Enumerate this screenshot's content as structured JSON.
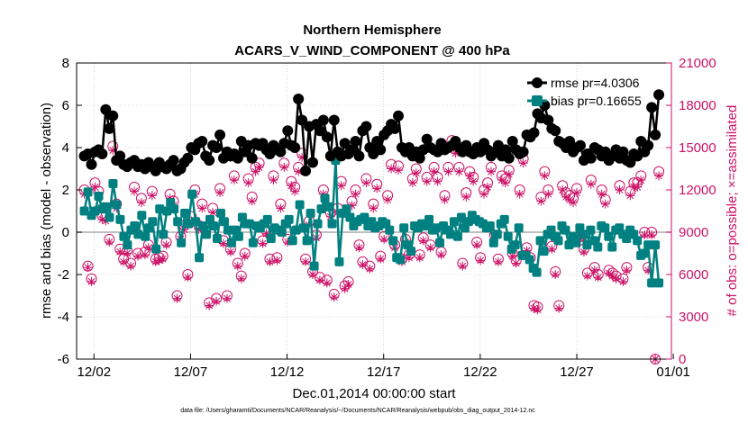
{
  "chart_data": {
    "type": "line",
    "title": [
      "Northern Hemisphere",
      "ACARS_V_WIND_COMPONENT @ 400 hPa"
    ],
    "xlabel": "Dec.01,2014 00:00:00 start",
    "ylabel": "rmse and bias (model - observation)",
    "ylabel_right": "# of obs: o=possible; ×=assimilated",
    "footnote": "data file: /Users/gharamti/Documents/NCAR/Reanalysis/~/Documents/NCAR/Reanalysis/webpub/obs_diag_output_2014-12.nc",
    "xlim": [
      0.6,
      31.4
    ],
    "ylim": [
      -6,
      8
    ],
    "ylim_right": [
      0,
      21000
    ],
    "x_ticks": [
      1.5,
      6.5,
      11.5,
      16.5,
      21.5,
      26.5,
      31.5
    ],
    "x_tick_labels": [
      "12/02",
      "12/07",
      "12/12",
      "12/17",
      "12/22",
      "12/27",
      "01/01"
    ],
    "y_ticks": [
      -6,
      -4,
      -2,
      0,
      2,
      4,
      6,
      8
    ],
    "y_tick_labels": [
      "-6",
      "-4",
      "-2",
      "0",
      "2",
      "4",
      "6",
      "8"
    ],
    "y_ticks_right": [
      0,
      3000,
      6000,
      9000,
      12000,
      15000,
      18000,
      21000
    ],
    "y_tick_labels_right": [
      "0",
      "3000",
      "6000",
      "9000",
      "12000",
      "15000",
      "18000",
      "21000"
    ],
    "zero_line": 0,
    "grid": true,
    "legend_position": "top-right",
    "colors": {
      "rmse": "#000000",
      "bias": "#008080",
      "obs": "#cc1166",
      "zero_line": "#aaaaaa",
      "grid": "#bbbbbb"
    },
    "series": [
      {
        "name": "rmse pr=4.0306",
        "axis": "left",
        "marker": "filled-circle",
        "values": [
          3.6,
          3.7,
          3.2,
          3.8,
          3.9,
          3.7,
          5.8,
          4.9,
          5.5,
          3.4,
          3.6,
          3.2,
          3.1,
          3.3,
          3.4,
          3.1,
          3.2,
          3.0,
          3.3,
          3.1,
          2.9,
          3.3,
          3.1,
          3.0,
          3.2,
          3.4,
          2.9,
          3.0,
          3.3,
          3.5,
          4.0,
          3.9,
          4.2,
          4.3,
          3.6,
          3.4,
          4.1,
          4.0,
          4.6,
          3.5,
          3.8,
          3.6,
          3.7,
          3.5,
          4.3,
          3.8,
          4.1,
          3.5,
          4.2,
          4.1,
          4.2,
          3.9,
          3.7,
          4.1,
          3.9,
          3.8,
          4.2,
          4.8,
          4.1,
          4.0,
          6.3,
          5.3,
          2.9,
          5.0,
          3.3,
          5.1,
          4.8,
          5.3,
          4.5,
          3.6,
          5.3,
          3.8,
          3.6,
          4.2,
          3.7,
          3.9,
          4.3,
          3.6,
          4.8,
          5.0,
          4.0,
          3.7,
          4.3,
          3.9,
          4.6,
          4.8,
          5.1,
          4.9,
          5.5,
          4.0,
          3.8,
          4.0,
          3.6,
          3.8,
          3.5,
          3.9,
          4.4,
          4.0,
          3.9,
          3.8,
          4.2,
          3.9,
          4.0,
          4.1,
          4.3,
          4.0,
          3.8,
          4.1,
          3.8,
          3.7,
          4.0,
          3.8,
          4.2,
          3.9,
          3.6,
          3.8,
          4.1,
          3.6,
          3.9,
          3.5,
          4.3,
          3.9,
          3.7,
          3.8,
          4.6,
          4.5,
          4.7,
          5.6,
          5.4,
          6.0,
          5.3,
          4.9,
          4.8,
          4.3,
          4.2,
          4.0,
          4.3,
          3.8,
          4.0,
          4.1,
          3.4,
          3.7,
          3.5,
          4.0,
          3.9,
          3.6,
          3.8,
          3.4,
          3.6,
          3.9,
          3.5,
          3.8,
          3.4,
          3.3,
          3.7,
          3.6,
          4.3,
          3.8,
          4.1,
          5.9,
          4.6,
          6.5
        ]
      },
      {
        "name": "bias pr=0.16655",
        "axis": "left",
        "marker": "filled-square",
        "values": [
          1.0,
          1.9,
          0.8,
          1.0,
          1.7,
          1.1,
          1.2,
          0.7,
          2.3,
          1.3,
          0.6,
          -0.2,
          -0.6,
          0.1,
          0.3,
          -0.1,
          0.8,
          -0.2,
          0.2,
          0.5,
          -0.8,
          1.1,
          -0.1,
          1.0,
          1.4,
          1.1,
          0.5,
          -0.5,
          0.9,
          0.4,
          1.8,
          0.5,
          -1.2,
          0.3,
          -0.1,
          0.6,
          0.3,
          -0.3,
          0.9,
          0.5,
          0.1,
          -0.5,
          0.1,
          -0.2,
          0.7,
          0.4,
          0.4,
          -0.5,
          0.3,
          0.2,
          0.4,
          0.6,
          -0.3,
          0.2,
          0.1,
          0.0,
          0.4,
          0.6,
          -0.4,
          0.1,
          1.3,
          0.2,
          -0.4,
          0.9,
          -1.6,
          0.4,
          1.1,
          1.6,
          1.2,
          0.4,
          3.4,
          -1.4,
          0.9,
          1.1,
          0.7,
          0.3,
          0.5,
          0.6,
          0.7,
          0.3,
          0.5,
          0.2,
          0.3,
          0.5,
          0.4,
          0.1,
          -0.4,
          -1.2,
          -1.3,
          0.2,
          -0.6,
          -0.9,
          0.3,
          0.2,
          0.4,
          0.3,
          0.6,
          0.1,
          0.2,
          -0.5,
          0.3,
          0.1,
          -0.1,
          0.5,
          -0.2,
          0.7,
          0.2,
          0.5,
          0.8,
          0.6,
          0.5,
          0.4,
          0.2,
          0.3,
          -0.5,
          -0.1,
          0.4,
          0.6,
          -0.2,
          -0.8,
          -0.6,
          0.2,
          -1.1,
          -1.1,
          -1.3,
          -1.7,
          -1.9,
          -0.4,
          -0.9,
          -0.1,
          0.1,
          -0.2,
          -0.4,
          0.3,
          0.1,
          -0.6,
          -0.2,
          -0.5,
          0.2,
          -0.1,
          -0.6,
          0.1,
          -0.4,
          -0.7,
          0.3,
          0.2,
          -0.2,
          -0.7,
          0.1,
          0.2,
          -0.1,
          -0.3,
          0.1,
          -0.1,
          -0.4,
          -1.1,
          -1.0,
          -0.6,
          -2.4,
          -0.6,
          -2.4
        ]
      },
      {
        "name": "obs possible",
        "axis": "right",
        "marker": "open-circle",
        "values": [
          12000,
          6600,
          5700,
          12500,
          11900,
          10200,
          10100,
          8500,
          15100,
          11000,
          7800,
          7100,
          7700,
          6800,
          12200,
          7500,
          11400,
          7600,
          8100,
          11900,
          7100,
          7200,
          7300,
          8300,
          11700,
          11200,
          4500,
          8700,
          9500,
          6000,
          10100,
          12000,
          9500,
          11000,
          9100,
          4000,
          10700,
          4300,
          12100,
          8400,
          4500,
          7800,
          13000,
          6800,
          5900,
          7500,
          12800,
          11500,
          13600,
          13900,
          8400,
          9100,
          7100,
          13000,
          7200,
          11000,
          13900,
          8500,
          12600,
          12200,
          13600,
          14600,
          7100,
          9800,
          6200,
          8800,
          5800,
          12000,
          5600,
          10400,
          4600,
          10700,
          12600,
          5200,
          5500,
          11200,
          12000,
          8100,
          6900,
          12800,
          6600,
          11000,
          12400,
          7300,
          8700,
          11600,
          13800,
          8100,
          13700,
          7100,
          8500,
          7400,
          12800,
          13500,
          7400,
          8600,
          12900,
          8100,
          13600,
          12900,
          7600,
          11600,
          13600,
          15500,
          14900,
          13600,
          6800,
          11800,
          13300,
          12900,
          8300,
          7200,
          12000,
          12500,
          13600,
          8800,
          7100,
          13000,
          12800,
          13400,
          7500,
          7000,
          12000,
          14200,
          7900,
          7200,
          3800,
          3700,
          11500,
          13300,
          12000,
          8000,
          6200,
          3800,
          12300,
          11800,
          11600,
          11400,
          12100,
          8700,
          7800,
          6100,
          12700,
          6500,
          6000,
          12000,
          11300,
          6300,
          6100,
          5900,
          12300,
          5700,
          6500,
          11900,
          12500,
          12500,
          13000,
          9000,
          6500,
          9000,
          0,
          13300
        ]
      },
      {
        "name": "obs assimilated",
        "axis": "right",
        "marker": "asterisk",
        "values": [
          11700,
          6500,
          5500,
          12200,
          11600,
          9900,
          9800,
          8300,
          14800,
          10700,
          7600,
          6900,
          7500,
          6600,
          11900,
          7300,
          11100,
          7400,
          7900,
          11600,
          6900,
          7000,
          7100,
          8100,
          11400,
          10900,
          4300,
          8500,
          9200,
          5800,
          9800,
          11700,
          9200,
          10700,
          8900,
          3800,
          10400,
          4100,
          11800,
          8200,
          4300,
          7600,
          12700,
          6600,
          5700,
          7300,
          12500,
          11200,
          13300,
          13600,
          8200,
          8900,
          6900,
          12700,
          7000,
          10700,
          13600,
          8300,
          12300,
          11900,
          13300,
          14300,
          6900,
          9500,
          6000,
          8600,
          5600,
          11700,
          5400,
          10100,
          4400,
          10400,
          12300,
          5000,
          5300,
          10900,
          11700,
          7900,
          6700,
          12500,
          6400,
          10700,
          12100,
          7100,
          8500,
          11300,
          13500,
          7900,
          13400,
          6900,
          8300,
          7200,
          12500,
          13200,
          7200,
          8400,
          12600,
          7900,
          13300,
          12600,
          7400,
          11300,
          13300,
          15200,
          14600,
          13300,
          6600,
          11500,
          13000,
          12600,
          8100,
          7000,
          11700,
          12200,
          13300,
          8600,
          6900,
          12700,
          12500,
          13100,
          7300,
          6800,
          11700,
          13900,
          7700,
          7000,
          3600,
          3500,
          11200,
          13000,
          11700,
          7800,
          6000,
          3600,
          12000,
          11500,
          11300,
          11100,
          11800,
          8500,
          7600,
          5900,
          12400,
          6300,
          5800,
          11700,
          11000,
          6100,
          5900,
          5700,
          12000,
          5500,
          6300,
          11600,
          12200,
          12200,
          12700,
          8800,
          6300,
          8800,
          0,
          13000
        ]
      }
    ]
  }
}
